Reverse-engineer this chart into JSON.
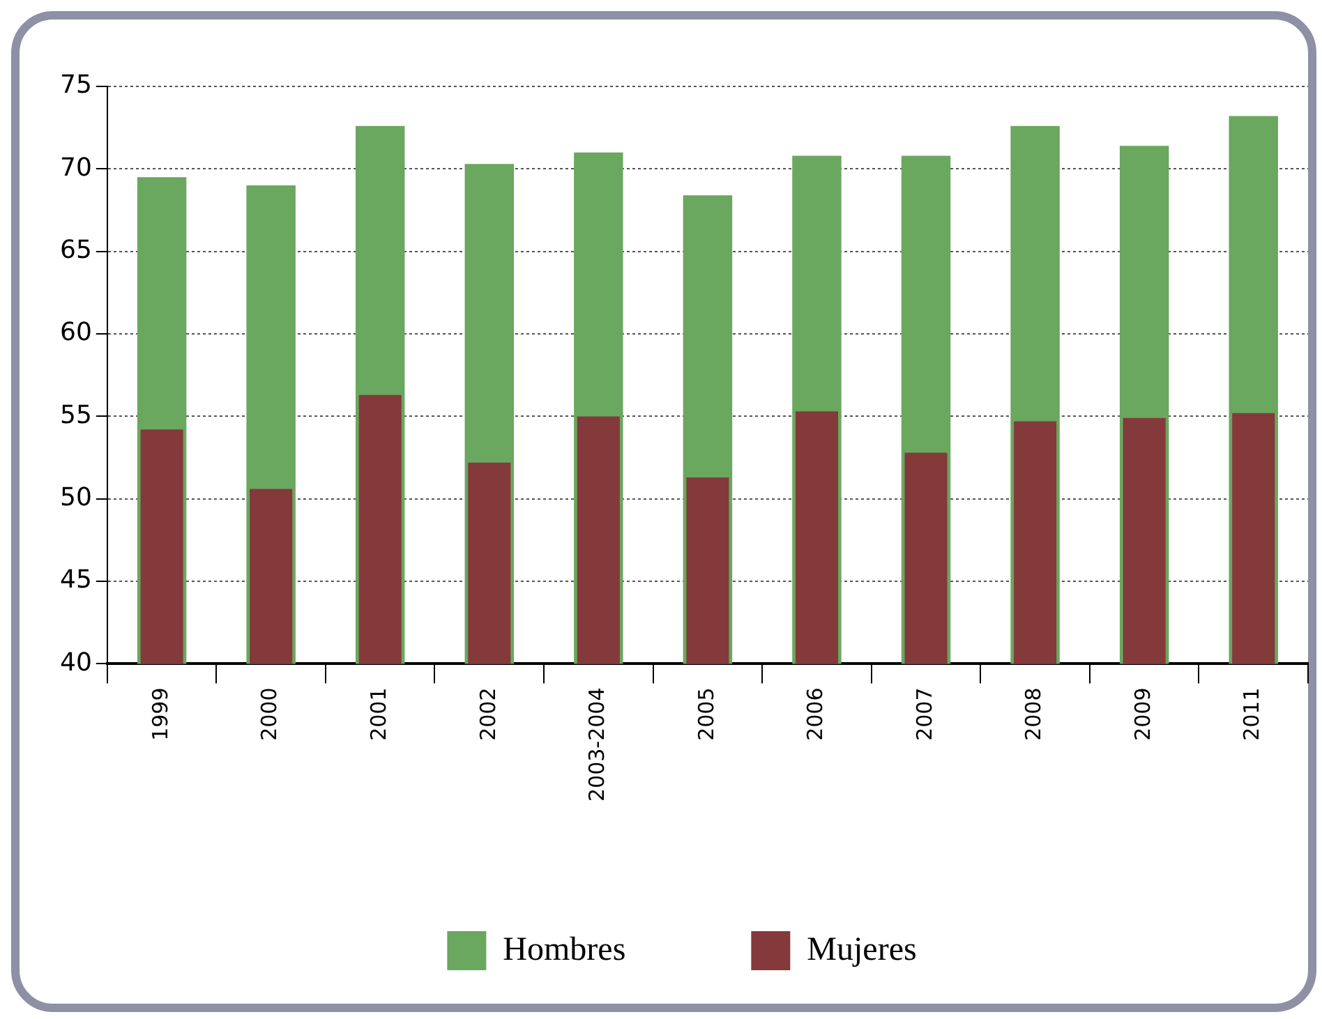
{
  "chart_data": {
    "type": "bar",
    "categories": [
      "1999",
      "2000",
      "2001",
      "2002",
      "2003-2004",
      "2005",
      "2006",
      "2007",
      "2008",
      "2009",
      "2011"
    ],
    "series": [
      {
        "name": "Hombres",
        "color": "#6aa75f",
        "values": [
          69.5,
          69.0,
          72.6,
          70.3,
          71.0,
          68.4,
          70.8,
          70.8,
          72.6,
          71.4,
          73.2
        ]
      },
      {
        "name": "Mujeres",
        "color": "#84393b",
        "values": [
          54.2,
          50.6,
          56.3,
          52.2,
          55.0,
          51.3,
          55.3,
          52.8,
          54.7,
          54.9,
          55.2
        ]
      }
    ],
    "ylim": [
      40,
      75
    ],
    "yticks": [
      40,
      45,
      50,
      55,
      60,
      65,
      70,
      75
    ],
    "grid": "y",
    "legend": "bottom"
  }
}
